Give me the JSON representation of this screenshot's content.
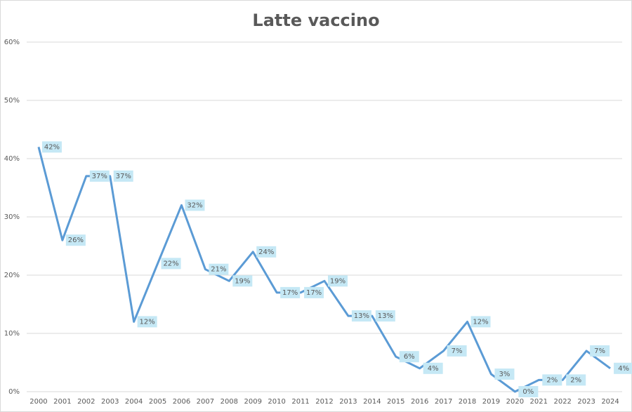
{
  "chart_data": {
    "type": "line",
    "title": "Latte vaccino",
    "categories": [
      "2000",
      "2001",
      "2002",
      "2003",
      "2004",
      "2005",
      "2006",
      "2007",
      "2008",
      "2009",
      "2010",
      "2011",
      "2012",
      "2013",
      "2014",
      "2015",
      "2016",
      "2017",
      "2018",
      "2019",
      "2020",
      "2021",
      "2022",
      "2023",
      "2024"
    ],
    "values": [
      42,
      26,
      37,
      37,
      12,
      22,
      32,
      21,
      19,
      24,
      17,
      17,
      19,
      13,
      13,
      6,
      4,
      7,
      12,
      3,
      0,
      2,
      2,
      7,
      4
    ],
    "value_labels": [
      "42%",
      "26%",
      "37%",
      "37%",
      "12%",
      "22%",
      "32%",
      "21%",
      "19%",
      "24%",
      "17%",
      "17%",
      "19%",
      "13%",
      "13%",
      "6%",
      "4%",
      "7%",
      "12%",
      "3%",
      "0%",
      "2%",
      "2%",
      "7%",
      "4%"
    ],
    "color": "#5b9bd5",
    "ylim": [
      0,
      60
    ],
    "yticks": [
      {
        "value": 0,
        "label": "0%"
      },
      {
        "value": 10,
        "label": "10%"
      },
      {
        "value": 20,
        "label": "20%"
      },
      {
        "value": 30,
        "label": "30%"
      },
      {
        "value": 40,
        "label": "40%"
      },
      {
        "value": 50,
        "label": "50%"
      },
      {
        "value": 60,
        "label": "60%"
      }
    ],
    "grid": true
  }
}
